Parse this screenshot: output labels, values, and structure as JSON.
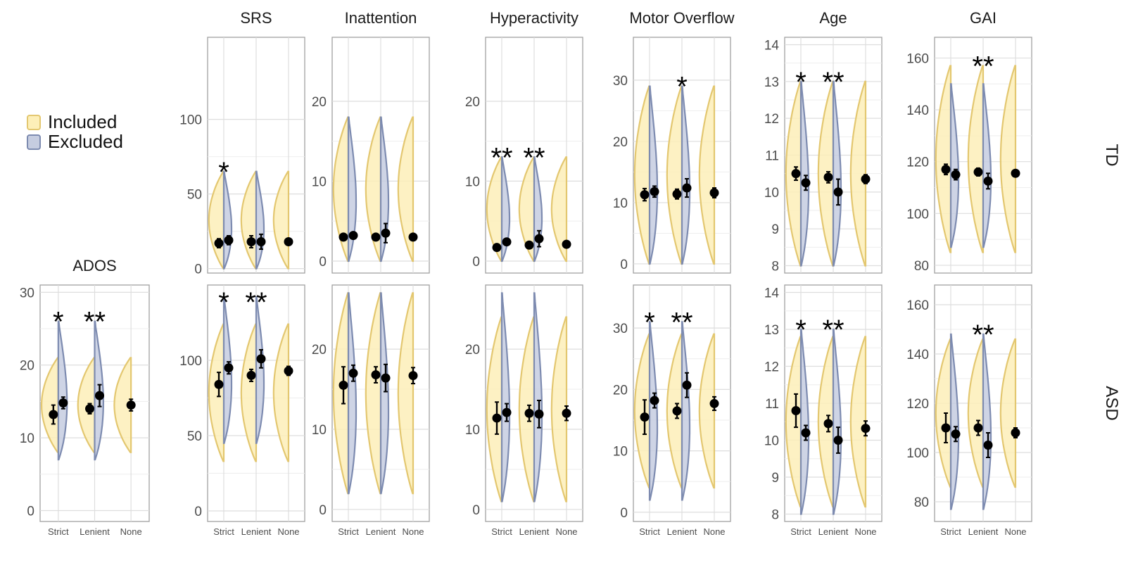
{
  "chart_data": {
    "type": "violin",
    "x_categories": [
      "Strict",
      "Lenient",
      "None"
    ],
    "row_labels": [
      "TD",
      "ASD"
    ],
    "legend": [
      {
        "name": "Included",
        "fill": "#fdefb8",
        "stroke": "#e3c770"
      },
      {
        "name": "Excluded",
        "fill": "#c6cde0",
        "stroke": "#7d8bb0"
      }
    ],
    "panels": [
      {
        "row": "TD",
        "title": "SRS",
        "ylim": [
          -3,
          155
        ],
        "yticks": [
          0,
          50,
          100
        ],
        "points": [
          [
            17,
            19
          ],
          [
            18,
            18
          ],
          [
            18,
            null
          ]
        ],
        "err": [
          [
            3,
            3
          ],
          [
            4,
            5
          ],
          [
            2,
            null
          ]
        ],
        "incl_range": [
          0,
          65
        ],
        "excl_range": [
          0,
          65
        ],
        "stars": [
          "*",
          "",
          ""
        ]
      },
      {
        "row": "TD",
        "title": "Inattention",
        "ylim": [
          -1.5,
          28
        ],
        "yticks": [
          0,
          10,
          20
        ],
        "points": [
          [
            3,
            3.2
          ],
          [
            3,
            3.5
          ],
          [
            3,
            null
          ]
        ],
        "err": [
          [
            0.4,
            0.4
          ],
          [
            0.4,
            1.2
          ],
          [
            0.3,
            null
          ]
        ],
        "incl_range": [
          0,
          18
        ],
        "excl_range": [
          0,
          18
        ],
        "stars": [
          "",
          "",
          ""
        ]
      },
      {
        "row": "TD",
        "title": "Hyperactivity",
        "ylim": [
          -1.5,
          28
        ],
        "yticks": [
          0,
          10,
          20
        ],
        "points": [
          [
            1.7,
            2.4
          ],
          [
            2,
            2.8
          ],
          [
            2.1,
            null
          ]
        ],
        "err": [
          [
            0.3,
            0.4
          ],
          [
            0.3,
            1
          ],
          [
            0.3,
            null
          ]
        ],
        "incl_range": [
          0,
          13
        ],
        "excl_range": [
          0,
          13
        ],
        "stars": [
          "**",
          "**",
          ""
        ]
      },
      {
        "row": "TD",
        "title": "Motor Overflow",
        "ylim": [
          -1.5,
          37
        ],
        "yticks": [
          0,
          10,
          20,
          30
        ],
        "points": [
          [
            11.3,
            11.8
          ],
          [
            11.4,
            12.4
          ],
          [
            11.6,
            null
          ]
        ],
        "err": [
          [
            1,
            0.9
          ],
          [
            0.8,
            1.5
          ],
          [
            0.8,
            null
          ]
        ],
        "incl_range": [
          0,
          29
        ],
        "excl_range": [
          0,
          29
        ],
        "stars": [
          "",
          "*",
          ""
        ]
      },
      {
        "row": "TD",
        "title": "Age",
        "ylim": [
          7.8,
          14.2
        ],
        "yticks": [
          8,
          9,
          10,
          11,
          12,
          13,
          14
        ],
        "points": [
          [
            10.5,
            10.25
          ],
          [
            10.4,
            10
          ],
          [
            10.35,
            null
          ]
        ],
        "err": [
          [
            0.18,
            0.2
          ],
          [
            0.15,
            0.35
          ],
          [
            0.12,
            null
          ]
        ],
        "incl_range": [
          8,
          13
        ],
        "excl_range": [
          8,
          13
        ],
        "stars": [
          "*",
          "**",
          ""
        ]
      },
      {
        "row": "TD",
        "title": "GAI",
        "ylim": [
          77,
          168
        ],
        "yticks": [
          80,
          100,
          120,
          140,
          160
        ],
        "points": [
          [
            117,
            115
          ],
          [
            116,
            112.5
          ],
          [
            115.5,
            null
          ]
        ],
        "err": [
          [
            2,
            2
          ],
          [
            1.5,
            3
          ],
          [
            1.2,
            null
          ]
        ],
        "incl_range": [
          85,
          157
        ],
        "excl_range": [
          87,
          150
        ],
        "stars": [
          "",
          "**",
          ""
        ]
      },
      {
        "row": "ASD",
        "title": "ADOS",
        "ylim": [
          -1.5,
          31
        ],
        "yticks": [
          0,
          10,
          20,
          30
        ],
        "points": [
          [
            13.2,
            14.8
          ],
          [
            14,
            15.8
          ],
          [
            14.5,
            null
          ]
        ],
        "err": [
          [
            1.3,
            0.8
          ],
          [
            0.7,
            1.5
          ],
          [
            0.8,
            null
          ]
        ],
        "incl_range": [
          8,
          21
        ],
        "excl_range": [
          7,
          26
        ],
        "stars": [
          "*",
          "**",
          ""
        ]
      },
      {
        "row": "ASD",
        "title": "",
        "ylim": [
          -7,
          150
        ],
        "yticks": [
          0,
          50,
          100
        ],
        "points": [
          [
            84,
            95
          ],
          [
            90,
            101
          ],
          [
            93,
            null
          ]
        ],
        "err": [
          [
            8,
            4
          ],
          [
            4,
            6
          ],
          [
            3,
            null
          ]
        ],
        "incl_range": [
          33,
          124
        ],
        "excl_range": [
          45,
          142
        ],
        "stars": [
          "*",
          "**",
          ""
        ]
      },
      {
        "row": "ASD",
        "title": "",
        "ylim": [
          -1.5,
          28
        ],
        "yticks": [
          0,
          10,
          20
        ],
        "points": [
          [
            15.5,
            17
          ],
          [
            16.8,
            16.4
          ],
          [
            16.7,
            null
          ]
        ],
        "err": [
          [
            2.3,
            1
          ],
          [
            1,
            1.7
          ],
          [
            1,
            null
          ]
        ],
        "incl_range": [
          2,
          27
        ],
        "excl_range": [
          2,
          27
        ],
        "stars": [
          "",
          "",
          ""
        ]
      },
      {
        "row": "ASD",
        "title": "",
        "ylim": [
          -1.5,
          28
        ],
        "yticks": [
          0,
          10,
          20
        ],
        "points": [
          [
            11.4,
            12.1
          ],
          [
            12,
            11.9
          ],
          [
            12,
            null
          ]
        ],
        "err": [
          [
            2,
            1.1
          ],
          [
            1,
            1.7
          ],
          [
            0.9,
            null
          ]
        ],
        "incl_range": [
          1,
          24
        ],
        "excl_range": [
          1,
          27
        ],
        "stars": [
          "",
          "",
          ""
        ]
      },
      {
        "row": "ASD",
        "title": "",
        "ylim": [
          -1.5,
          37
        ],
        "yticks": [
          0,
          10,
          20,
          30
        ],
        "points": [
          [
            15.5,
            18.2
          ],
          [
            16.5,
            20.7
          ],
          [
            17.7,
            null
          ]
        ],
        "err": [
          [
            2.8,
            1.2
          ],
          [
            1.2,
            2
          ],
          [
            1.1,
            null
          ]
        ],
        "incl_range": [
          4,
          29
        ],
        "excl_range": [
          2,
          31
        ],
        "stars": [
          "*",
          "**",
          ""
        ]
      },
      {
        "row": "ASD",
        "title": "",
        "ylim": [
          7.8,
          14.2
        ],
        "yticks": [
          8,
          9,
          10,
          11,
          12,
          13,
          14
        ],
        "points": [
          [
            10.8,
            10.2
          ],
          [
            10.45,
            10
          ],
          [
            10.32,
            null
          ]
        ],
        "err": [
          [
            0.45,
            0.2
          ],
          [
            0.22,
            0.35
          ],
          [
            0.2,
            null
          ]
        ],
        "incl_range": [
          8.2,
          12.8
        ],
        "excl_range": [
          8,
          13
        ],
        "stars": [
          "*",
          "**",
          ""
        ]
      },
      {
        "row": "ASD",
        "title": "",
        "ylim": [
          72,
          168
        ],
        "yticks": [
          80,
          100,
          120,
          140,
          160
        ],
        "points": [
          [
            110,
            107.5
          ],
          [
            110,
            103
          ],
          [
            108,
            null
          ]
        ],
        "err": [
          [
            6,
            3
          ],
          [
            3,
            5
          ],
          [
            2,
            null
          ]
        ],
        "incl_range": [
          86,
          146
        ],
        "excl_range": [
          77,
          148
        ],
        "stars": [
          "",
          "**",
          ""
        ]
      }
    ],
    "bottom_ados_title": "ADOS"
  }
}
